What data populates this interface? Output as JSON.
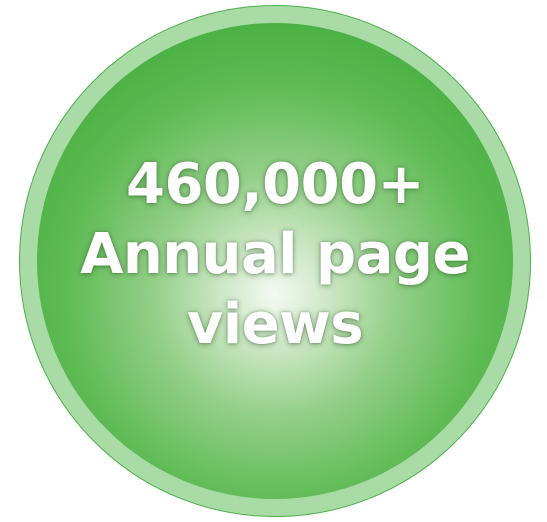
{
  "badge": {
    "value": "460,000+",
    "line2": "Annual page",
    "line3": "views",
    "colors": {
      "ring": "#a8dba6",
      "ring_border": "#4caf4a",
      "disc_center": "#f4faf2",
      "disc_edge": "#3ea838",
      "text": "#ffffff"
    }
  }
}
